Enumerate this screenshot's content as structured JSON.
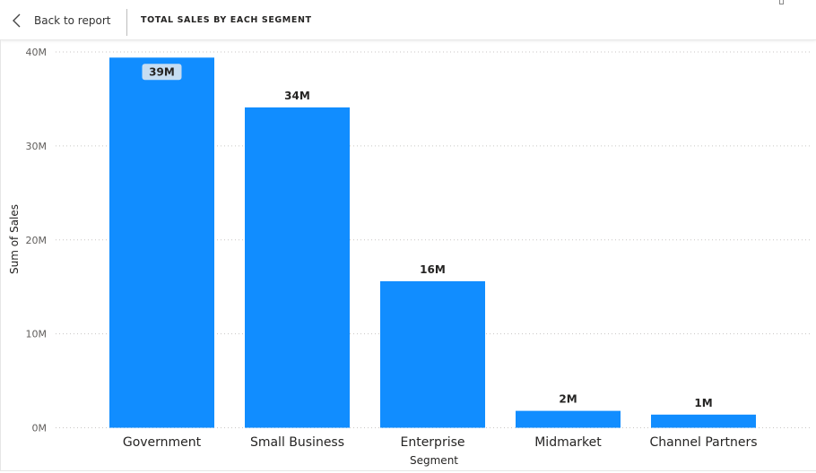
{
  "header": {
    "back_label": "Back to report",
    "title": "TOTAL SALES BY EACH SEGMENT"
  },
  "colors": {
    "bar": "#118DFF",
    "highlight_label_bg": "#C6DDF2",
    "text": "#252423",
    "axis_text": "#605E5C",
    "grid": "#C8C6C4"
  },
  "chart_data": {
    "type": "bar",
    "title": "",
    "xlabel": "Segment",
    "ylabel": "Sum of Sales",
    "categories": [
      "Government",
      "Small Business",
      "Enterprise",
      "Midmarket",
      "Channel Partners"
    ],
    "values": [
      39.4,
      34.1,
      15.6,
      1.8,
      1.4
    ],
    "data_labels": [
      "39M",
      "34M",
      "16M",
      "2M",
      "1M"
    ],
    "y_ticks": [
      0,
      10,
      20,
      30,
      40
    ],
    "y_tick_labels": [
      "0M",
      "10M",
      "20M",
      "30M",
      "40M"
    ],
    "ylim": [
      0,
      40
    ],
    "grid": true,
    "legend": "none"
  }
}
